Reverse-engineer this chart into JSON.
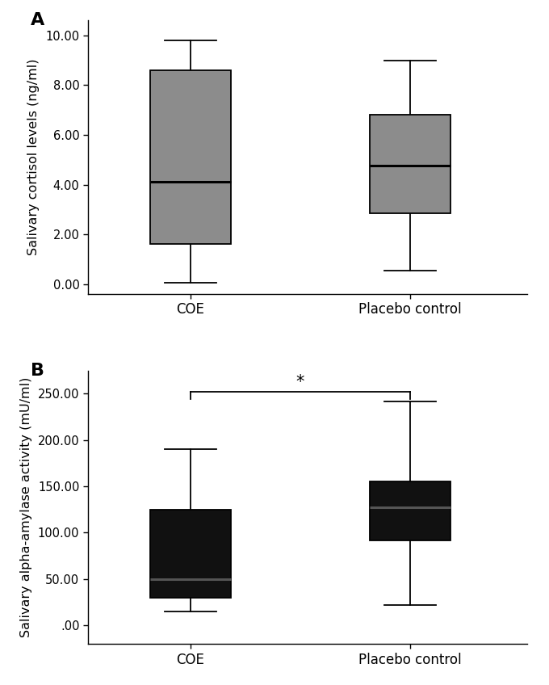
{
  "panel_A": {
    "ylabel": "Salivary cortisol levels (ng/ml)",
    "ylim": [
      -0.4,
      10.6
    ],
    "yticks": [
      0.0,
      2.0,
      4.0,
      6.0,
      8.0,
      10.0
    ],
    "ytick_labels": [
      "0.00",
      "2.00",
      "4.00",
      "6.00",
      "8.00",
      "10.00"
    ],
    "categories": [
      "COE",
      "Placebo control"
    ],
    "box_color": "#8c8c8c",
    "median_color": "#000000",
    "whisker_color": "#000000",
    "COE": {
      "whisker_low": 0.05,
      "q1": 1.6,
      "median": 4.1,
      "q3": 8.6,
      "whisker_high": 9.8
    },
    "Placebo": {
      "whisker_low": 0.55,
      "q1": 2.85,
      "median": 4.75,
      "q3": 6.8,
      "whisker_high": 9.0
    },
    "label": "A",
    "positions": [
      1,
      2.5
    ],
    "xlim": [
      0.3,
      3.3
    ],
    "box_width": 0.55
  },
  "panel_B": {
    "ylabel": "Salivary alpha-amylase activity (mU/ml)",
    "ylim": [
      -20,
      275
    ],
    "yticks": [
      0,
      50,
      100,
      150,
      200,
      250
    ],
    "ytick_labels": [
      ".00",
      "50.00",
      "100.00",
      "150.00",
      "200.00",
      "250.00"
    ],
    "categories": [
      "COE",
      "Placebo control"
    ],
    "box_color": "#111111",
    "median_color": "#555555",
    "whisker_color": "#000000",
    "COE": {
      "whisker_low": 15,
      "q1": 30,
      "median": 50,
      "q3": 125,
      "whisker_high": 190
    },
    "Placebo": {
      "whisker_low": 22,
      "q1": 92,
      "median": 127,
      "q3": 155,
      "whisker_high": 242
    },
    "label": "B",
    "positions": [
      1,
      2.5
    ],
    "xlim": [
      0.3,
      3.3
    ],
    "box_width": 0.55,
    "sig_bar_y": 252,
    "sig_marker": "*"
  }
}
